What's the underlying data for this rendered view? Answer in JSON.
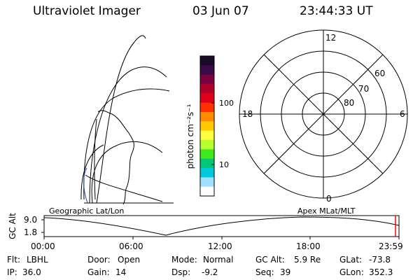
{
  "header": {
    "title": "Ultraviolet Imager",
    "date": "03 Jun 07",
    "time": "23:44:33 UT"
  },
  "colorbar": {
    "unit_label": "photon cm⁻²s⁻¹",
    "ticks": [
      "100",
      "10"
    ],
    "colors": [
      "#1a0a2a",
      "#3a0a4a",
      "#7a0040",
      "#b0002a",
      "#e0001a",
      "#ff3000",
      "#ff8a00",
      "#ffc800",
      "#ffff40",
      "#b8ff30",
      "#40e820",
      "#00c878",
      "#00c8e0",
      "#a0e0ff",
      "#ffffff"
    ]
  },
  "polar": {
    "mlt_labels": {
      "top": "12",
      "left": "18",
      "right": "6",
      "bottom": "0"
    },
    "lat_labels": [
      "60",
      "70",
      "80"
    ]
  },
  "timeline": {
    "y_axis_label": "GC Alt",
    "y_ticks": [
      "9.0",
      "1.8"
    ],
    "left_label": "Geographic Lat/Lon",
    "right_label": "Apex MLat/MLT",
    "x_ticks": [
      "00:00",
      "06:00",
      "12:00",
      "18:00",
      "23:59"
    ],
    "cursor_color": "#ff0000"
  },
  "status": [
    [
      {
        "key": "Flt:",
        "value": "LBHL"
      },
      {
        "key": "Door:",
        "value": "Open"
      },
      {
        "key": "Mode:",
        "value": "Normal"
      },
      {
        "key": "GC Alt:",
        "value": "5.9 Re"
      },
      {
        "key": "GLat:",
        "value": "-73.8"
      }
    ],
    [
      {
        "key": "IP:",
        "value": "36.0"
      },
      {
        "key": "Gain:",
        "value": "14"
      },
      {
        "key": "Dsp:",
        "value": "-9.2"
      },
      {
        "key": "Seq:",
        "value": "39"
      },
      {
        "key": "GLon:",
        "value": "352.3"
      }
    ]
  ]
}
